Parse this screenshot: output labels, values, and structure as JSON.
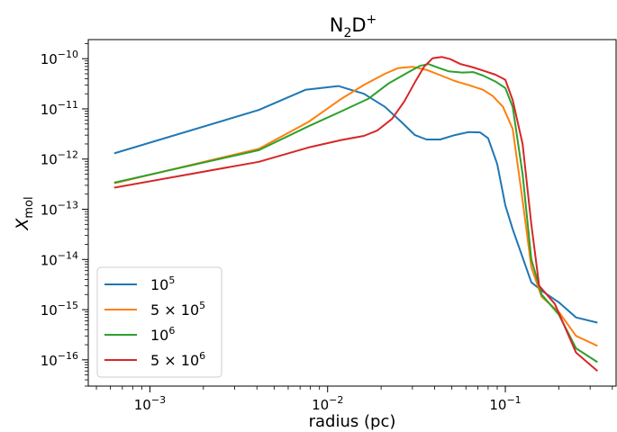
{
  "chart_data": {
    "type": "line",
    "title": {
      "main": "N",
      "sub": "2",
      "mid": "D",
      "sup": "+"
    },
    "xlabel": "radius (pc)",
    "ylabel": {
      "main": "X",
      "sub": "mol"
    },
    "xscale": "log",
    "yscale": "log",
    "xlim": [
      0.00045,
      0.42
    ],
    "ylim": [
      3e-17,
      2.4e-10
    ],
    "x_ticks": [
      {
        "value": 0.001,
        "base": "10",
        "exp": "−3"
      },
      {
        "value": 0.01,
        "base": "10",
        "exp": "−2"
      },
      {
        "value": 0.1,
        "base": "10",
        "exp": "−1"
      }
    ],
    "y_ticks": [
      {
        "value": 1e-16,
        "base": "10",
        "exp": "−16"
      },
      {
        "value": 1e-15,
        "base": "10",
        "exp": "−15"
      },
      {
        "value": 1e-14,
        "base": "10",
        "exp": "−14"
      },
      {
        "value": 1e-13,
        "base": "10",
        "exp": "−13"
      },
      {
        "value": 1e-12,
        "base": "10",
        "exp": "−12"
      },
      {
        "value": 1e-11,
        "base": "10",
        "exp": "−11"
      },
      {
        "value": 1e-10,
        "base": "10",
        "exp": "−10"
      }
    ],
    "grid": false,
    "legend_position": "lower-left",
    "series": [
      {
        "name": {
          "main": "10",
          "sup": "5"
        },
        "color": "#1f77b4",
        "points": [
          [
            0.00063,
            1.3e-12
          ],
          [
            0.0041,
            9.5e-12
          ],
          [
            0.0075,
            2.4e-11
          ],
          [
            0.0115,
            2.85e-11
          ],
          [
            0.016,
            2e-11
          ],
          [
            0.021,
            1.1e-11
          ],
          [
            0.026,
            5.5e-12
          ],
          [
            0.031,
            3e-12
          ],
          [
            0.036,
            2.45e-12
          ],
          [
            0.043,
            2.45e-12
          ],
          [
            0.052,
            3e-12
          ],
          [
            0.062,
            3.45e-12
          ],
          [
            0.072,
            3.4e-12
          ],
          [
            0.08,
            2.6e-12
          ],
          [
            0.09,
            8e-13
          ],
          [
            0.1,
            1.2e-13
          ],
          [
            0.11,
            4e-14
          ],
          [
            0.125,
            1.1e-14
          ],
          [
            0.14,
            3.5e-15
          ],
          [
            0.16,
            2.4e-15
          ],
          [
            0.2,
            1.4e-15
          ],
          [
            0.25,
            7e-16
          ],
          [
            0.33,
            5.5e-16
          ]
        ]
      },
      {
        "name": {
          "main": "5 × 10",
          "sup": "5"
        },
        "color": "#ff7f0e",
        "points": [
          [
            0.00063,
            3.3e-13
          ],
          [
            0.0041,
            1.6e-12
          ],
          [
            0.0078,
            5.5e-12
          ],
          [
            0.012,
            1.6e-11
          ],
          [
            0.016,
            3e-11
          ],
          [
            0.021,
            5e-11
          ],
          [
            0.025,
            6.5e-11
          ],
          [
            0.03,
            6.9e-11
          ],
          [
            0.036,
            6e-11
          ],
          [
            0.043,
            4.7e-11
          ],
          [
            0.052,
            3.6e-11
          ],
          [
            0.062,
            3e-11
          ],
          [
            0.075,
            2.4e-11
          ],
          [
            0.085,
            1.8e-11
          ],
          [
            0.097,
            1.1e-11
          ],
          [
            0.11,
            4e-12
          ],
          [
            0.125,
            1.5e-13
          ],
          [
            0.14,
            7e-15
          ],
          [
            0.16,
            1.8e-15
          ],
          [
            0.2,
            9e-16
          ],
          [
            0.25,
            3e-16
          ],
          [
            0.33,
            1.9e-16
          ]
        ]
      },
      {
        "name": {
          "main": "10",
          "sup": "6"
        },
        "color": "#2ca02c",
        "points": [
          [
            0.00063,
            3.4e-13
          ],
          [
            0.0041,
            1.5e-12
          ],
          [
            0.0078,
            4.5e-12
          ],
          [
            0.012,
            9e-12
          ],
          [
            0.017,
            1.6e-11
          ],
          [
            0.022,
            3.2e-11
          ],
          [
            0.028,
            5.2e-11
          ],
          [
            0.033,
            7.2e-11
          ],
          [
            0.037,
            7.8e-11
          ],
          [
            0.042,
            6.6e-11
          ],
          [
            0.048,
            5.6e-11
          ],
          [
            0.057,
            5.3e-11
          ],
          [
            0.066,
            5.4e-11
          ],
          [
            0.075,
            4.6e-11
          ],
          [
            0.088,
            3.5e-11
          ],
          [
            0.1,
            2.6e-11
          ],
          [
            0.11,
            1.1e-11
          ],
          [
            0.125,
            5e-13
          ],
          [
            0.14,
            1e-14
          ],
          [
            0.16,
            2e-15
          ],
          [
            0.2,
            8e-16
          ],
          [
            0.25,
            1.7e-16
          ],
          [
            0.33,
            9e-17
          ]
        ]
      },
      {
        "name": {
          "main": "5 × 10",
          "sup": "6"
        },
        "color": "#d62728",
        "points": [
          [
            0.00063,
            2.7e-13
          ],
          [
            0.0041,
            8.8e-13
          ],
          [
            0.0078,
            1.7e-12
          ],
          [
            0.012,
            2.4e-12
          ],
          [
            0.016,
            2.9e-12
          ],
          [
            0.019,
            3.7e-12
          ],
          [
            0.023,
            6.3e-12
          ],
          [
            0.027,
            1.4e-11
          ],
          [
            0.031,
            3.4e-11
          ],
          [
            0.035,
            7e-11
          ],
          [
            0.039,
            1.02e-10
          ],
          [
            0.044,
            1.08e-10
          ],
          [
            0.049,
            9.8e-11
          ],
          [
            0.056,
            7.8e-11
          ],
          [
            0.065,
            6.8e-11
          ],
          [
            0.075,
            5.8e-11
          ],
          [
            0.088,
            4.8e-11
          ],
          [
            0.1,
            3.8e-11
          ],
          [
            0.11,
            1.5e-11
          ],
          [
            0.125,
            2e-12
          ],
          [
            0.14,
            5e-14
          ],
          [
            0.155,
            3e-15
          ],
          [
            0.19,
            1.3e-15
          ],
          [
            0.25,
            1.4e-16
          ],
          [
            0.33,
            6e-17
          ]
        ]
      }
    ]
  }
}
